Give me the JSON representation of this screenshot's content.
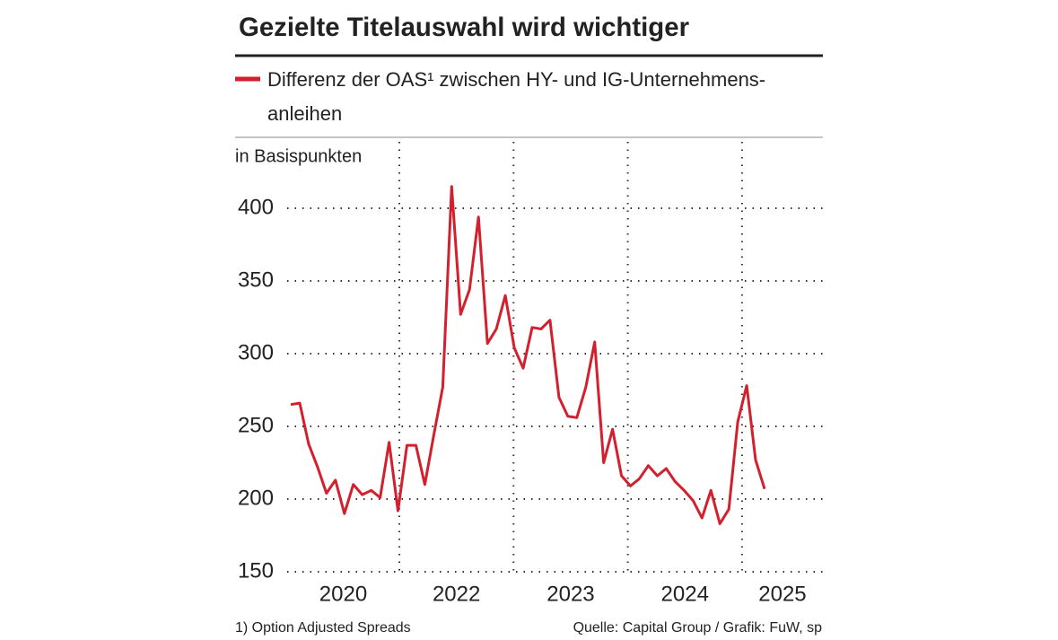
{
  "chart_data": {
    "type": "line",
    "title": "Gezielte Titelauswahl wird wichtiger",
    "y_label": "in Basispunkten",
    "footnote": "1) Option Adjusted Spreads",
    "source": "Quelle: Capital Group / Grafik: FuW, sp",
    "x_labels": [
      "2020",
      "2022",
      "2023",
      "2024",
      "2025"
    ],
    "series": [
      {
        "name": "Differenz der OAS¹ zwischen HY- und IG-Unternehmens-anleihen",
        "color": "#d3202e",
        "values": [
          265,
          266,
          238,
          222,
          204,
          213,
          190,
          210,
          203,
          206,
          201,
          239,
          192,
          237,
          237,
          210,
          244,
          277,
          415,
          327,
          344,
          394,
          307,
          317,
          340,
          304,
          290,
          318,
          317,
          323,
          270,
          257,
          256,
          277,
          308,
          225,
          248,
          216,
          209,
          214,
          223,
          216,
          221,
          212,
          206,
          199,
          187,
          206,
          183,
          193,
          253,
          278,
          227,
          207
        ]
      }
    ],
    "ylim": [
      150,
      420
    ],
    "yticks": [
      150,
      200,
      250,
      300,
      350,
      400
    ],
    "grid": true
  }
}
